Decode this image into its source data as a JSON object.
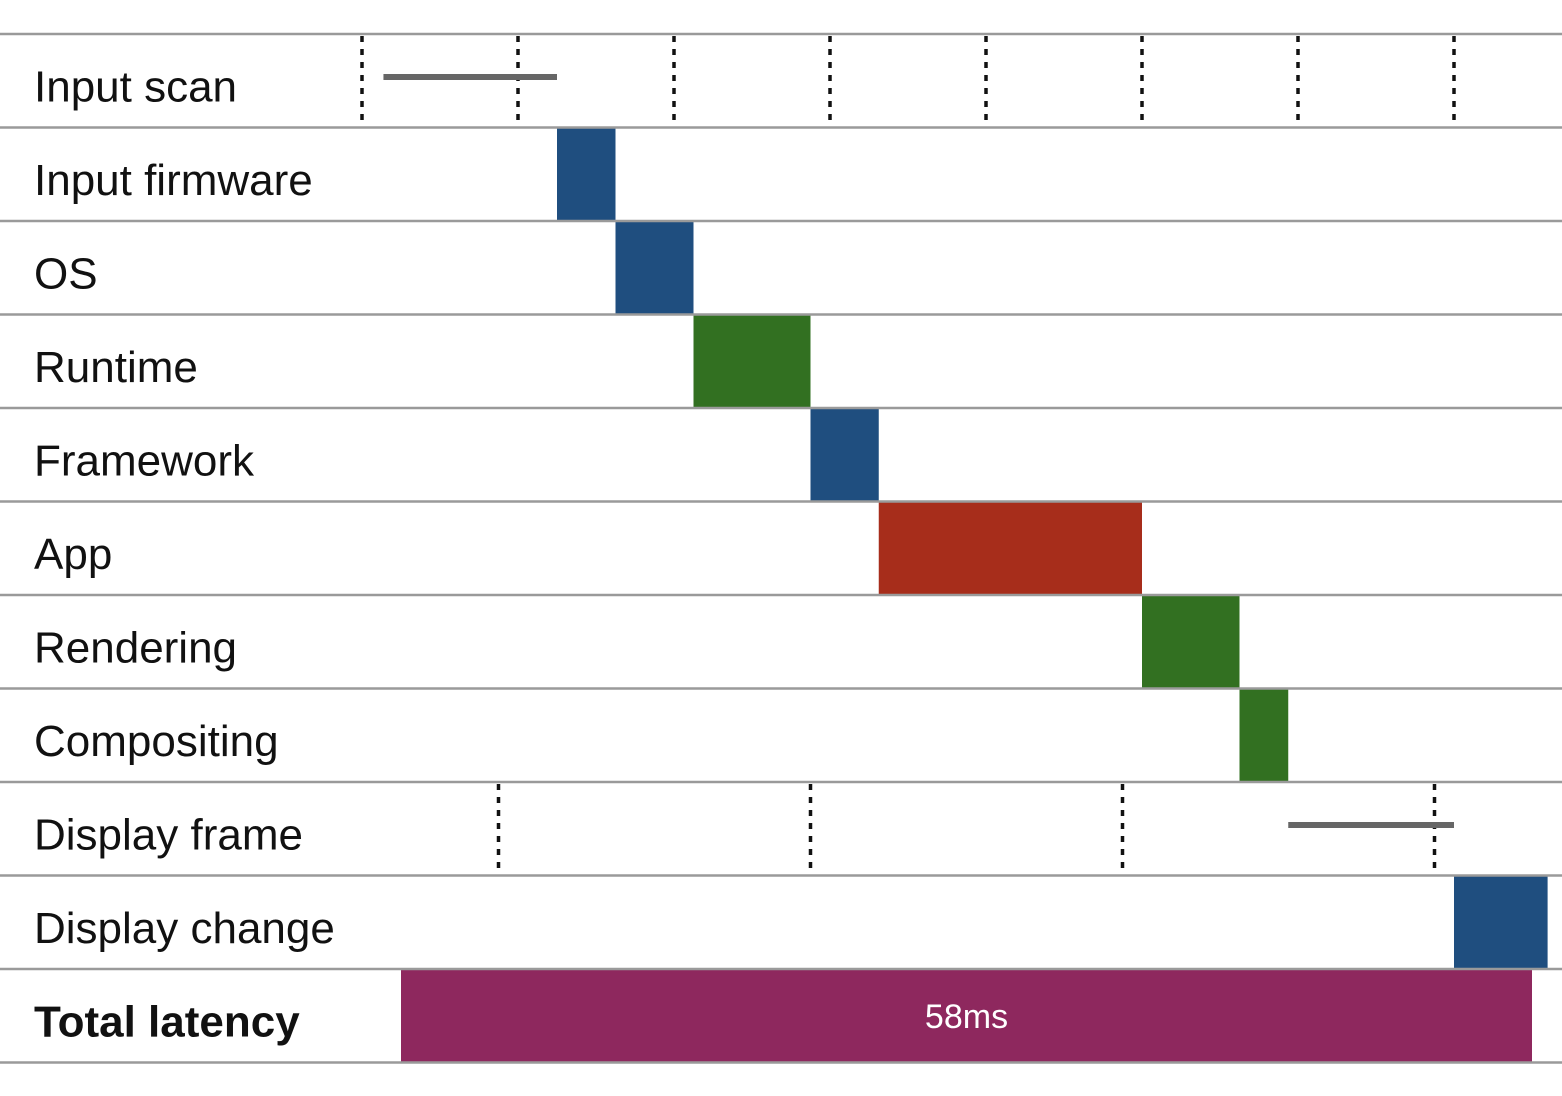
{
  "chart_data": {
    "type": "gantt",
    "title": "",
    "unit": "ms",
    "rows": [
      {
        "label": "Input scan",
        "kind": "periodic",
        "period": 8,
        "first_tick": -2.0,
        "ticks": 8,
        "wait": [
          -0.9,
          8.0
        ]
      },
      {
        "label": "Input firmware",
        "kind": "bar",
        "start": 8.0,
        "end": 11.0,
        "color": "#1f4e7f"
      },
      {
        "label": "OS",
        "kind": "bar",
        "start": 11.0,
        "end": 15.0,
        "color": "#1f4e7f"
      },
      {
        "label": "Runtime",
        "kind": "bar",
        "start": 15.0,
        "end": 21.0,
        "color": "#327021"
      },
      {
        "label": "Framework",
        "kind": "bar",
        "start": 21.0,
        "end": 24.5,
        "color": "#1f4e7f"
      },
      {
        "label": "App",
        "kind": "bar",
        "start": 24.5,
        "end": 38.0,
        "color": "#a72d1b"
      },
      {
        "label": "Rendering",
        "kind": "bar",
        "start": 38.0,
        "end": 43.0,
        "color": "#327021"
      },
      {
        "label": "Compositing",
        "kind": "bar",
        "start": 43.0,
        "end": 45.5,
        "color": "#327021"
      },
      {
        "label": "Display frame",
        "kind": "periodic",
        "period": 16,
        "first_tick": 5.0,
        "ticks": 4,
        "wait": [
          45.5,
          54.0
        ]
      },
      {
        "label": "Display change",
        "kind": "bar",
        "start": 54.0,
        "end": 58.8,
        "color": "#1f4e7f"
      },
      {
        "label": "Total latency",
        "kind": "total",
        "start": 0,
        "end": 58.0,
        "color": "#8e285e",
        "value_label": "58ms",
        "bold": true
      }
    ],
    "x_range": [
      -20.5,
      60.0
    ],
    "gridlines": true
  }
}
